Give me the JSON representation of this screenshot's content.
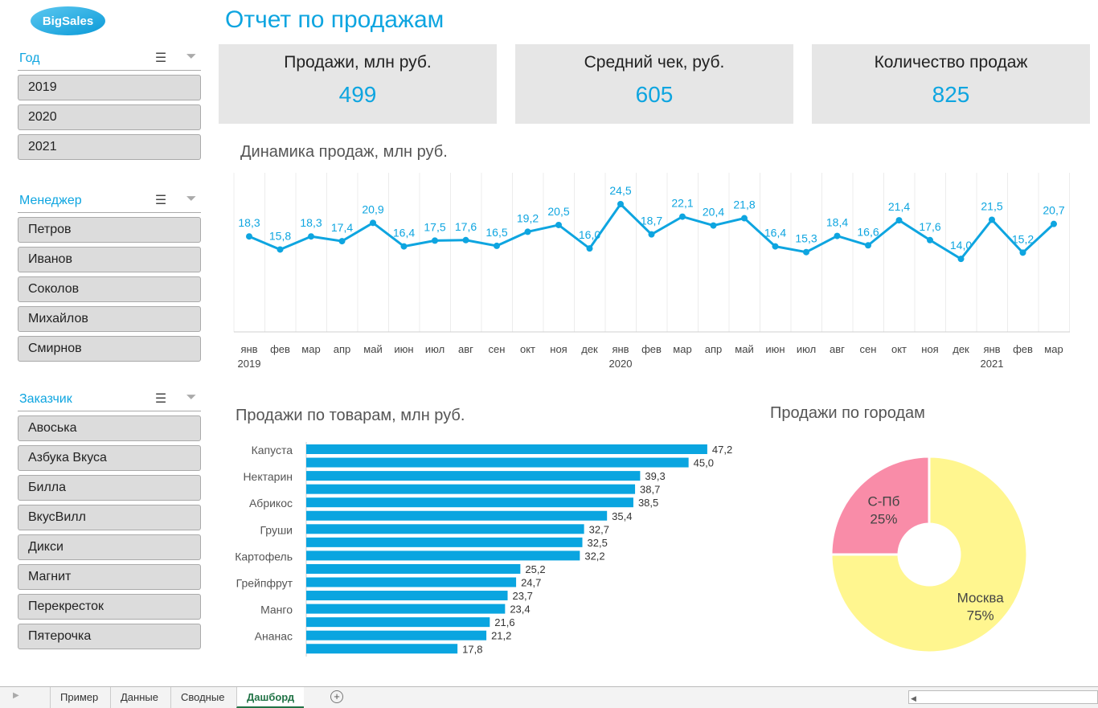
{
  "logo": "BigSales",
  "title": "Отчет по продажам",
  "slicers": [
    {
      "title": "Год",
      "items": [
        "2019",
        "2020",
        "2021"
      ]
    },
    {
      "title": "Менеджер",
      "items": [
        "Петров",
        "Иванов",
        "Соколов",
        "Михайлов",
        "Смирнов"
      ]
    },
    {
      "title": "Заказчик",
      "items": [
        "Авоська",
        "Азбука Вкуса",
        "Билла",
        "ВкусВилл",
        "Дикси",
        "Магнит",
        "Перекресток",
        "Пятерочка"
      ]
    }
  ],
  "kpis": [
    {
      "label": "Продажи, млн руб.",
      "value": "499"
    },
    {
      "label": "Средний чек, руб.",
      "value": "605"
    },
    {
      "label": "Количество продаж",
      "value": "825"
    }
  ],
  "chart_data": [
    {
      "type": "line",
      "title": "Динамика продаж, млн руб.",
      "color": "#0ea5e0",
      "ylim": [
        0,
        30
      ],
      "grid": "vertical",
      "x": [
        "янв",
        "фев",
        "мар",
        "апр",
        "май",
        "июн",
        "июл",
        "авг",
        "сен",
        "окт",
        "ноя",
        "дек",
        "янв",
        "фев",
        "мар",
        "апр",
        "май",
        "июн",
        "июл",
        "авг",
        "сен",
        "окт",
        "ноя",
        "дек",
        "янв",
        "фев",
        "мар"
      ],
      "year_labels": {
        "0": "2019",
        "12": "2020",
        "24": "2021"
      },
      "values": [
        18.3,
        15.8,
        18.3,
        17.4,
        20.9,
        16.4,
        17.5,
        17.6,
        16.5,
        19.2,
        20.5,
        16.0,
        24.5,
        18.7,
        22.1,
        20.4,
        21.8,
        16.4,
        15.3,
        18.4,
        16.6,
        21.4,
        17.6,
        14.0,
        21.5,
        15.2,
        20.7
      ]
    },
    {
      "type": "bar",
      "orientation": "horizontal",
      "title": "Продажи по товарам, млн руб.",
      "color": "#0aa5e0",
      "categories": [
        "Капуста",
        "",
        "Нектарин",
        "",
        "Абрикос",
        "",
        "Груши",
        "",
        "Картофель",
        "",
        "Грейпфрут",
        "",
        "Манго",
        "",
        "Ананас",
        ""
      ],
      "values": [
        47.2,
        45.0,
        39.3,
        38.7,
        38.5,
        35.4,
        32.7,
        32.5,
        32.2,
        25.2,
        24.7,
        23.7,
        23.4,
        21.6,
        21.2,
        17.8
      ]
    },
    {
      "type": "pie",
      "donut": true,
      "title": "Продажи по городам",
      "slices": [
        {
          "label": "Москва",
          "value": 75,
          "pct": "75%",
          "color": "#fff68f"
        },
        {
          "label": "С-Пб",
          "value": 25,
          "pct": "25%",
          "color": "#f98ca8"
        }
      ]
    }
  ],
  "sheet_tabs": [
    "Пример",
    "Данные",
    "Сводные",
    "Дашборд"
  ],
  "active_tab": "Дашборд"
}
